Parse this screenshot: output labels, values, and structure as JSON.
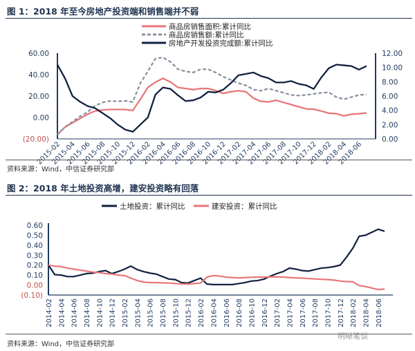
{
  "chart_data": [
    {
      "type": "line",
      "title": "图 1：2018 年至今房地产投资端和销售端并不弱",
      "source": "资料来源：Wind，中信证券研究部",
      "x_start": "2015-02",
      "tick_labels": [
        "2015-02",
        "2015-04",
        "2015-06",
        "2015-08",
        "2015-10",
        "2015-12",
        "2016-02",
        "2016-04",
        "2016-06",
        "2016-08",
        "2016-10",
        "2016-12",
        "2017-02",
        "2017-04",
        "2017-06",
        "2017-08",
        "2017-10",
        "2017-12",
        "2018-02",
        "2018-04",
        "2018-06"
      ],
      "y_left_ticks": [
        "60.00",
        "40.00",
        "20.00",
        "0.00",
        "(20.00)"
      ],
      "ylim_left": [
        -20,
        60
      ],
      "y_right_ticks": [
        "12.00",
        "10.00",
        "8.00",
        "6.00",
        "4.00",
        "2.00",
        "0.00"
      ],
      "ylim_right": [
        0,
        12
      ],
      "series": [
        {
          "name": "商品房销售面积:累计同比",
          "axis": "left",
          "color": "#e8767a",
          "style": "solid",
          "values": [
            -16,
            -9,
            -5,
            -1,
            3,
            6,
            7,
            7.5,
            7.5,
            7.4,
            6.5,
            17,
            28,
            33,
            36.5,
            33,
            28,
            27,
            26,
            27,
            27,
            25,
            22.5,
            24,
            25,
            24,
            18,
            15,
            14.5,
            16,
            14,
            12,
            10,
            8,
            7.7,
            6,
            4,
            3.5,
            1.5,
            3,
            3.5,
            4.2
          ]
        },
        {
          "name": "商品房销售额:累计同比",
          "axis": "left",
          "color": "#8a929e",
          "style": "dashed",
          "values": [
            -16,
            -9,
            -4,
            1,
            5,
            11,
            14,
            15.5,
            15,
            15.5,
            14.5,
            32,
            43,
            55,
            56,
            52,
            45,
            43,
            42,
            45,
            45,
            42,
            38,
            35,
            32,
            30,
            26,
            25,
            27,
            25,
            23,
            21,
            20.5,
            21,
            22,
            23,
            23.5,
            19,
            17,
            19,
            21,
            21.5
          ]
        },
        {
          "name": "房地产开发投资完成额:累计同比",
          "axis": "right",
          "color": "#10203f",
          "style": "solid",
          "values": [
            10.4,
            8.5,
            6,
            5.2,
            4.6,
            4.3,
            3.6,
            2.9,
            2,
            1.3,
            1,
            2,
            3,
            6.2,
            7.2,
            7,
            6.1,
            5.3,
            5.4,
            5.8,
            6.6,
            6.5,
            6.9,
            7.8,
            8.9,
            9.1,
            9.3,
            8.8,
            8.5,
            7.9,
            7.9,
            8.1,
            7.7,
            7.5,
            7,
            8.6,
            9.9,
            10.4,
            10.3,
            10.2,
            9.7,
            10.2
          ]
        }
      ]
    },
    {
      "type": "line",
      "title": "图 2：2018 年土地投资高增，建安投资略有回落",
      "source": "资料来源：Wind，中信证券研究部",
      "x_start": "2014-02",
      "tick_labels": [
        "2014-02",
        "2014-04",
        "2014-06",
        "2014-08",
        "2014-10",
        "2014-12",
        "2015-02",
        "2015-04",
        "2015-06",
        "2015-08",
        "2015-10",
        "2015-12",
        "2016-02",
        "2016-04",
        "2016-06",
        "2016-08",
        "2016-10",
        "2016-12",
        "2017-02",
        "2017-04",
        "2017-06",
        "2017-08",
        "2017-10",
        "2017-12",
        "2018-02",
        "2018-04",
        "2018-06"
      ],
      "y_ticks": [
        "0.60",
        "0.50",
        "0.40",
        "0.30",
        "0.20",
        "0.10",
        "0.00",
        "(0.10)"
      ],
      "ylim": [
        -0.1,
        0.6
      ],
      "series": [
        {
          "name": "土地投资：累计同比",
          "color": "#10203f",
          "values": [
            0.2,
            0.105,
            0.1,
            0.085,
            0.085,
            0.1,
            0.115,
            0.12,
            0.135,
            0.145,
            0.115,
            0.135,
            0.16,
            0.19,
            0.155,
            0.135,
            0.12,
            0.11,
            0.085,
            0.06,
            0.055,
            0.025,
            0.02,
            0.045,
            0.07,
            0.01,
            0.005,
            0.005,
            0.005,
            0.005,
            0.015,
            0.025,
            0.04,
            0.045,
            0.06,
            0.09,
            0.115,
            0.135,
            0.17,
            0.16,
            0.145,
            0.14,
            0.155,
            0.17,
            0.175,
            0.185,
            0.2,
            0.28,
            0.37,
            0.49,
            0.5,
            0.53,
            0.56,
            0.54
          ]
        },
        {
          "name": "建安投资：累计同比",
          "color": "#e8767a",
          "values": [
            0.2,
            0.19,
            0.185,
            0.17,
            0.16,
            0.15,
            0.14,
            0.13,
            0.125,
            0.115,
            0.11,
            0.1,
            0.095,
            0.07,
            0.045,
            0.03,
            0.025,
            0.025,
            0.022,
            0.02,
            0.015,
            0.012,
            0.01,
            0.015,
            0.02,
            0.08,
            0.095,
            0.09,
            0.08,
            0.075,
            0.072,
            0.075,
            0.078,
            0.08,
            0.08,
            0.082,
            0.083,
            0.08,
            0.075,
            0.072,
            0.07,
            0.065,
            0.062,
            0.058,
            0.055,
            0.05,
            0.04,
            0.035,
            0.033,
            -0.005,
            -0.015,
            -0.03,
            -0.045,
            -0.04
          ]
        }
      ]
    }
  ],
  "watermark": "明晰笔谈",
  "colors": {
    "axis": "#1f3a5f",
    "neg": "#c0504d"
  }
}
